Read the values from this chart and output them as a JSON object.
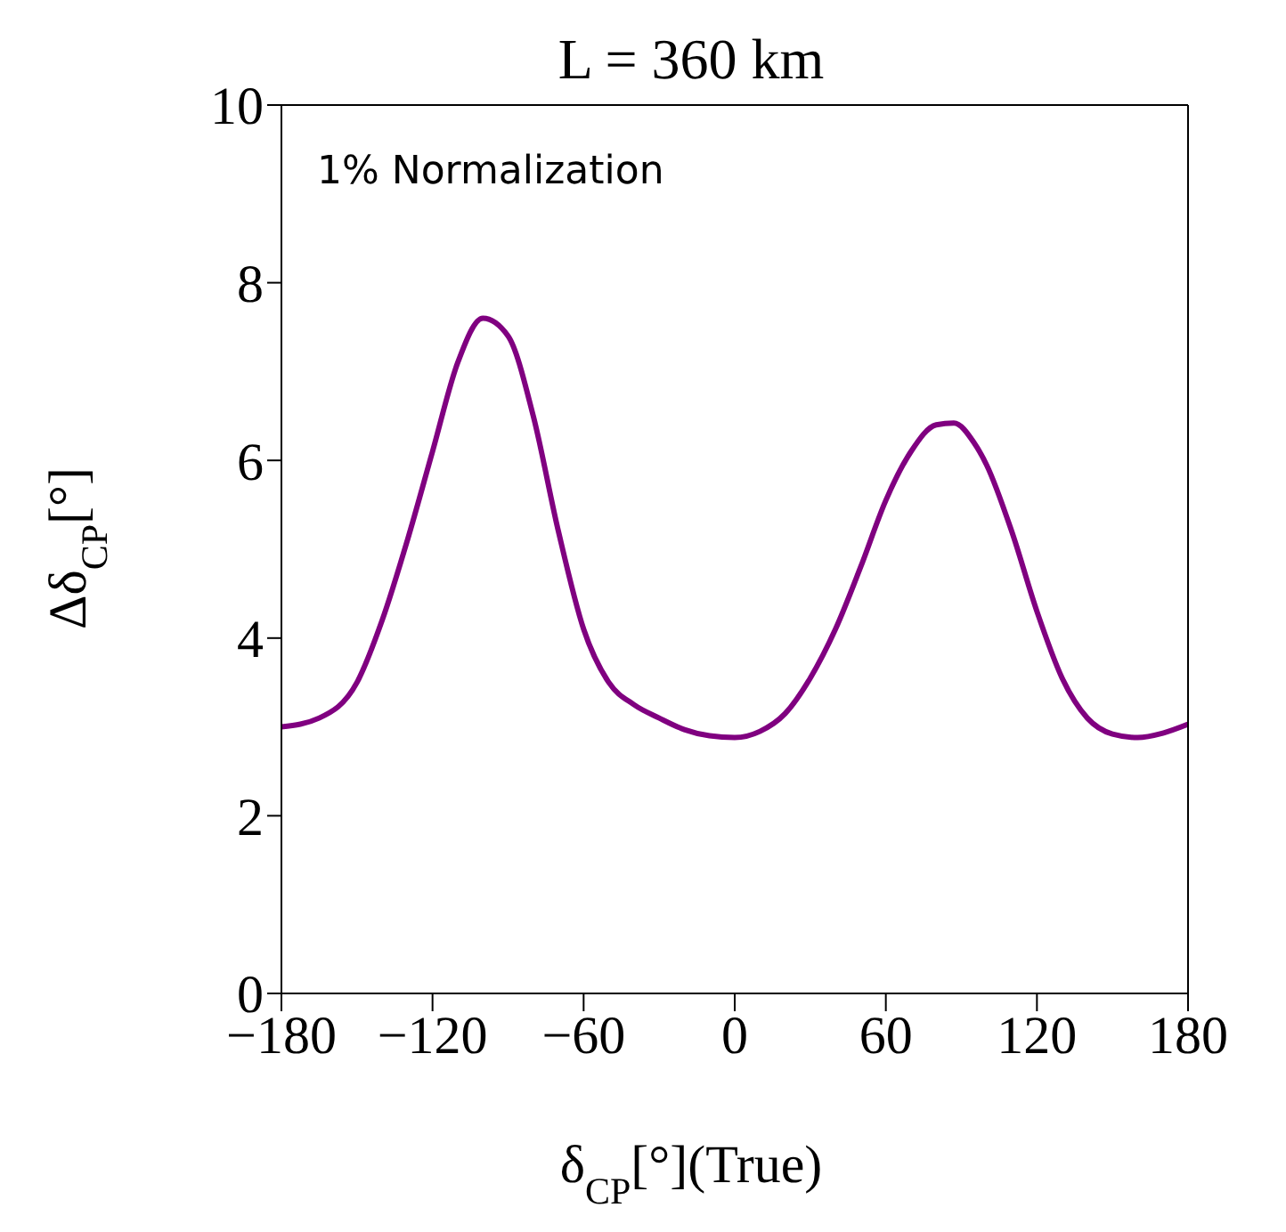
{
  "chart_data": {
    "type": "line",
    "title": "L = 360 km",
    "xlabel": "δ$_{CP}$[°](True)",
    "ylabel": "Δδ$_{CP}$[°]",
    "annotations": [
      "1% Normalization"
    ],
    "x": [
      -180,
      -165,
      -150,
      -140,
      -130,
      -120,
      -110,
      -100,
      -90,
      -80,
      -70,
      -60,
      -50,
      -40,
      -30,
      -20,
      -10,
      0,
      10,
      20,
      30,
      40,
      50,
      60,
      70,
      80,
      87,
      95,
      100,
      110,
      120,
      130,
      140,
      150,
      160,
      170,
      180
    ],
    "series": [
      {
        "color": "#800080",
        "values": [
          3.0,
          3.1,
          3.5,
          4.2,
          5.1,
          6.1,
          7.1,
          7.6,
          7.4,
          6.5,
          5.2,
          4.1,
          3.5,
          3.25,
          3.1,
          2.97,
          2.9,
          2.88,
          2.95,
          3.15,
          3.55,
          4.1,
          4.8,
          5.55,
          6.1,
          6.4,
          6.42,
          6.2,
          5.95,
          5.2,
          4.3,
          3.55,
          3.1,
          2.92,
          2.88,
          2.93,
          3.03
        ]
      }
    ],
    "xlim": [
      -180,
      180
    ],
    "xticks": [
      -180,
      -120,
      -60,
      0,
      60,
      120,
      180
    ],
    "ylim": [
      0,
      10
    ],
    "yticks": [
      0,
      2,
      4,
      6,
      8,
      10
    ],
    "marker": "none",
    "line_style": "solid"
  }
}
